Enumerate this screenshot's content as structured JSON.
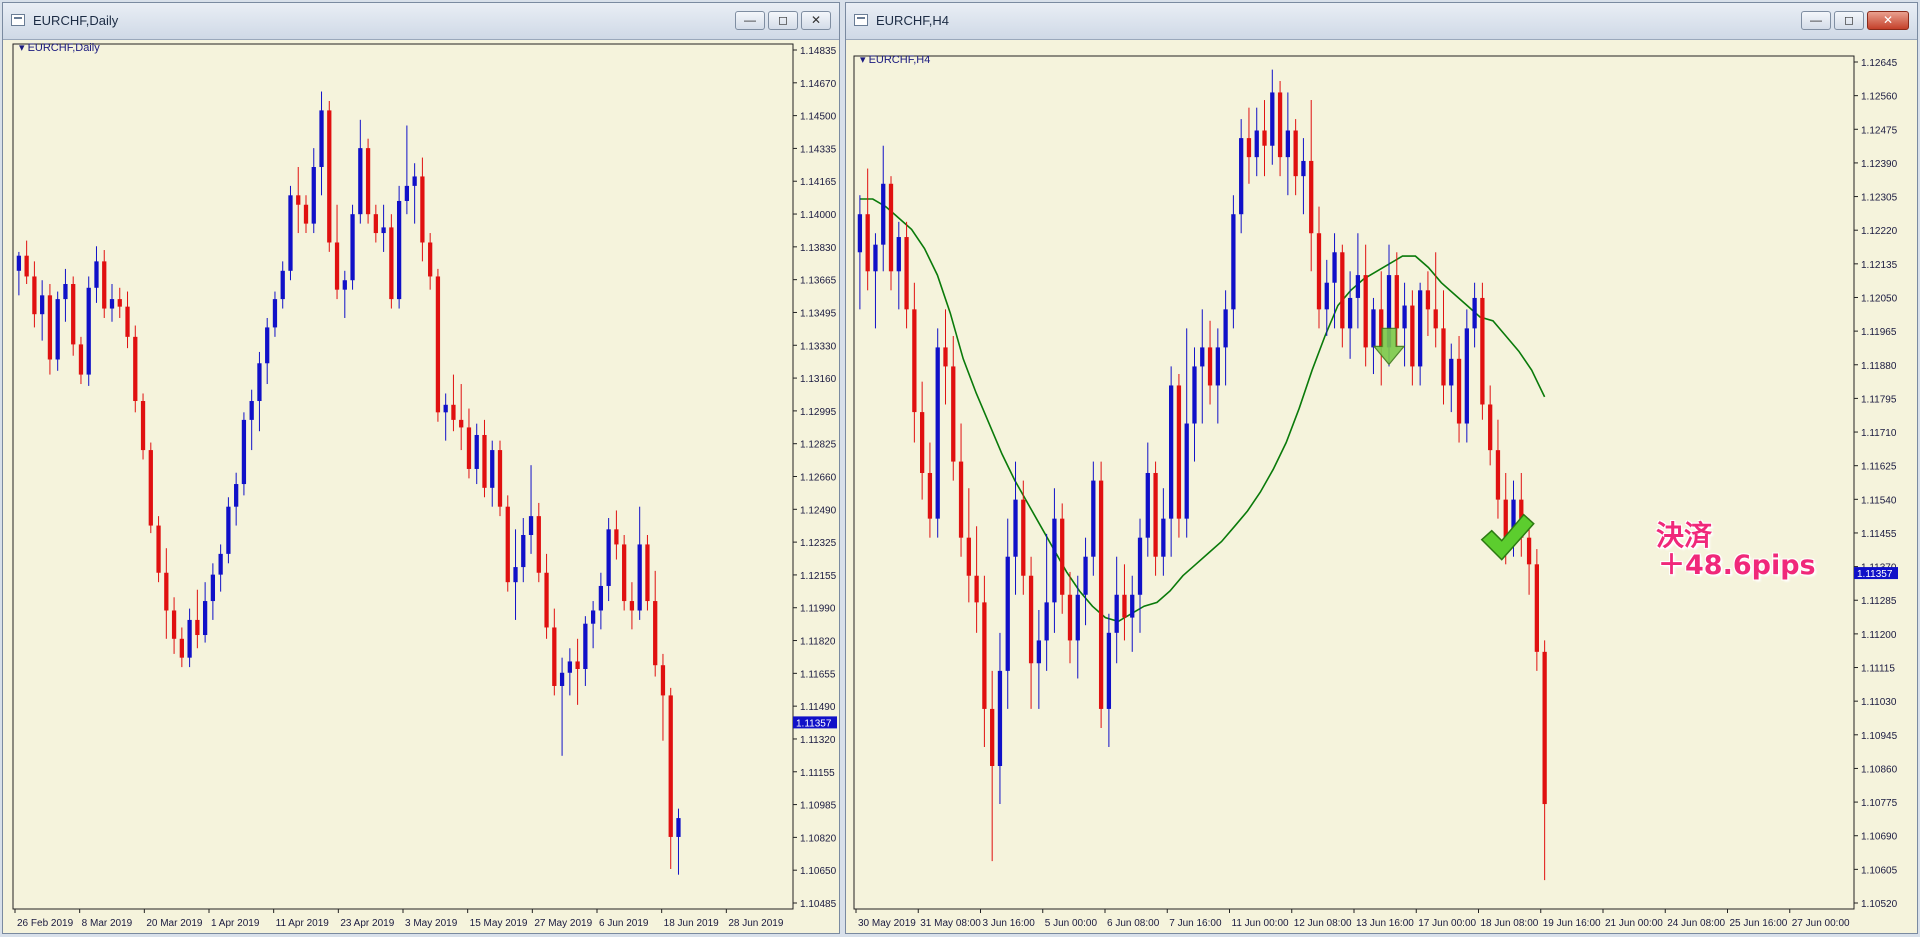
{
  "windows": {
    "left": {
      "title": "EURCHF,Daily",
      "min": "—",
      "max": "◻",
      "close": "✕"
    },
    "right": {
      "title": "EURCHF,H4",
      "min": "—",
      "max": "◻",
      "close": "✕"
    }
  },
  "annotation": {
    "line1": "決済",
    "line2": "＋48.6pips"
  },
  "colors": {
    "bull": "#1010c8",
    "bear": "#e01010",
    "ma": "#0a7a0a",
    "bg": "#f5f3dc",
    "price_tag": "#1010c8"
  },
  "chart_data": [
    {
      "type": "candlestick",
      "title": "EURCHF,Daily",
      "ylim": [
        1.104,
        1.1492
      ],
      "yticks": [
        "1.14835",
        "1.14670",
        "1.14500",
        "1.14335",
        "1.14165",
        "1.14000",
        "1.13830",
        "1.13665",
        "1.13495",
        "1.13330",
        "1.13160",
        "1.12995",
        "1.12825",
        "1.12660",
        "1.12490",
        "1.12325",
        "1.12155",
        "1.11990",
        "1.11820",
        "1.11655",
        "1.11490",
        "1.11320",
        "1.11155",
        "1.10985",
        "1.10820",
        "1.10650",
        "1.10485"
      ],
      "xticks": [
        "26 Feb 2019",
        "8 Mar 2019",
        "20 Mar 2019",
        "1 Apr 2019",
        "11 Apr 2019",
        "23 Apr 2019",
        "3 May 2019",
        "15 May 2019",
        "27 May 2019",
        "6 Jun 2019",
        "18 Jun 2019",
        "28 Jun 2019"
      ],
      "n_slots": 100,
      "current_price": "1.11357",
      "candles": [
        [
          1.1375,
          1.1385,
          1.1362,
          1.1383
        ],
        [
          1.1383,
          1.1391,
          1.1368,
          1.1372
        ],
        [
          1.1372,
          1.138,
          1.1345,
          1.1352
        ],
        [
          1.1352,
          1.137,
          1.1338,
          1.1362
        ],
        [
          1.1362,
          1.1368,
          1.132,
          1.1328
        ],
        [
          1.1328,
          1.1364,
          1.1322,
          1.136
        ],
        [
          1.136,
          1.1376,
          1.1348,
          1.1368
        ],
        [
          1.1368,
          1.1372,
          1.133,
          1.1336
        ],
        [
          1.1336,
          1.134,
          1.1315,
          1.132
        ],
        [
          1.132,
          1.1372,
          1.1314,
          1.1366
        ],
        [
          1.1366,
          1.1388,
          1.1358,
          1.138
        ],
        [
          1.138,
          1.1386,
          1.135,
          1.1355
        ],
        [
          1.1355,
          1.1368,
          1.1348,
          1.136
        ],
        [
          1.136,
          1.1366,
          1.135,
          1.1356
        ],
        [
          1.1356,
          1.1364,
          1.1334,
          1.134
        ],
        [
          1.134,
          1.1346,
          1.13,
          1.1306
        ],
        [
          1.1306,
          1.131,
          1.1275,
          1.128
        ],
        [
          1.128,
          1.1284,
          1.1236,
          1.124
        ],
        [
          1.124,
          1.1245,
          1.121,
          1.1215
        ],
        [
          1.1215,
          1.1228,
          1.118,
          1.1195
        ],
        [
          1.1195,
          1.1202,
          1.1172,
          1.118
        ],
        [
          1.118,
          1.1186,
          1.1165,
          1.117
        ],
        [
          1.117,
          1.1196,
          1.1165,
          1.119
        ],
        [
          1.119,
          1.1206,
          1.1175,
          1.1182
        ],
        [
          1.1182,
          1.121,
          1.1178,
          1.12
        ],
        [
          1.12,
          1.122,
          1.119,
          1.1214
        ],
        [
          1.1214,
          1.123,
          1.1205,
          1.1225
        ],
        [
          1.1225,
          1.1255,
          1.122,
          1.125
        ],
        [
          1.125,
          1.1268,
          1.124,
          1.1262
        ],
        [
          1.1262,
          1.13,
          1.1256,
          1.1296
        ],
        [
          1.1296,
          1.1312,
          1.128,
          1.1306
        ],
        [
          1.1306,
          1.1332,
          1.129,
          1.1326
        ],
        [
          1.1326,
          1.135,
          1.1315,
          1.1345
        ],
        [
          1.1345,
          1.1364,
          1.134,
          1.136
        ],
        [
          1.136,
          1.138,
          1.1355,
          1.1375
        ],
        [
          1.1375,
          1.142,
          1.137,
          1.1415
        ],
        [
          1.1415,
          1.143,
          1.1395,
          1.141
        ],
        [
          1.141,
          1.1415,
          1.1395,
          1.14
        ],
        [
          1.14,
          1.144,
          1.1395,
          1.143
        ],
        [
          1.143,
          1.147,
          1.1415,
          1.146
        ],
        [
          1.146,
          1.1465,
          1.1385,
          1.139
        ],
        [
          1.139,
          1.141,
          1.136,
          1.1365
        ],
        [
          1.1365,
          1.1375,
          1.135,
          1.137
        ],
        [
          1.137,
          1.141,
          1.1365,
          1.1405
        ],
        [
          1.1405,
          1.1455,
          1.14,
          1.144
        ],
        [
          1.144,
          1.1445,
          1.14,
          1.1405
        ],
        [
          1.1405,
          1.141,
          1.139,
          1.1395
        ],
        [
          1.1395,
          1.141,
          1.1385,
          1.1398
        ],
        [
          1.1398,
          1.1405,
          1.1355,
          1.136
        ],
        [
          1.136,
          1.142,
          1.1355,
          1.1412
        ],
        [
          1.1412,
          1.1452,
          1.1405,
          1.142
        ],
        [
          1.142,
          1.1432,
          1.14,
          1.1425
        ],
        [
          1.1425,
          1.1435,
          1.138,
          1.139
        ],
        [
          1.139,
          1.1395,
          1.1365,
          1.1372
        ],
        [
          1.1372,
          1.1376,
          1.1295,
          1.13
        ],
        [
          1.13,
          1.131,
          1.1285,
          1.1304
        ],
        [
          1.1304,
          1.132,
          1.129,
          1.1296
        ],
        [
          1.1296,
          1.1315,
          1.128,
          1.1292
        ],
        [
          1.1292,
          1.1302,
          1.1265,
          1.127
        ],
        [
          1.127,
          1.1294,
          1.1262,
          1.1288
        ],
        [
          1.1288,
          1.1296,
          1.1255,
          1.126
        ],
        [
          1.126,
          1.1285,
          1.125,
          1.128
        ],
        [
          1.128,
          1.1285,
          1.1245,
          1.125
        ],
        [
          1.125,
          1.1256,
          1.1205,
          1.121
        ],
        [
          1.121,
          1.1238,
          1.119,
          1.1218
        ],
        [
          1.1218,
          1.1244,
          1.121,
          1.1235
        ],
        [
          1.1235,
          1.1272,
          1.1225,
          1.1245
        ],
        [
          1.1245,
          1.1252,
          1.121,
          1.1215
        ],
        [
          1.1215,
          1.1225,
          1.118,
          1.1186
        ],
        [
          1.1186,
          1.1196,
          1.115,
          1.1155
        ],
        [
          1.1155,
          1.117,
          1.1118,
          1.1162
        ],
        [
          1.1162,
          1.1175,
          1.115,
          1.1168
        ],
        [
          1.1168,
          1.118,
          1.1145,
          1.1164
        ],
        [
          1.1164,
          1.1192,
          1.1155,
          1.1188
        ],
        [
          1.1188,
          1.12,
          1.1175,
          1.1195
        ],
        [
          1.1195,
          1.1215,
          1.1185,
          1.1208
        ],
        [
          1.1208,
          1.1244,
          1.12,
          1.1238
        ],
        [
          1.1238,
          1.1248,
          1.1222,
          1.123
        ],
        [
          1.123,
          1.1235,
          1.1195,
          1.12
        ],
        [
          1.12,
          1.121,
          1.1185,
          1.1195
        ],
        [
          1.1195,
          1.125,
          1.119,
          1.123
        ],
        [
          1.123,
          1.1235,
          1.1195,
          1.12
        ],
        [
          1.12,
          1.1216,
          1.116,
          1.1166
        ],
        [
          1.1166,
          1.1172,
          1.1126,
          1.115
        ],
        [
          1.115,
          1.1154,
          1.1058,
          1.1075
        ],
        [
          1.1075,
          1.109,
          1.1055,
          1.1085
        ]
      ]
    },
    {
      "type": "candlestick",
      "title": "EURCHF,H4",
      "ylim": [
        1.1049,
        1.127
      ],
      "yticks": [
        "1.12645",
        "1.12560",
        "1.12475",
        "1.12390",
        "1.12305",
        "1.12220",
        "1.12135",
        "1.12050",
        "1.11965",
        "1.11880",
        "1.11795",
        "1.11710",
        "1.11625",
        "1.11540",
        "1.11455",
        "1.11370",
        "1.11285",
        "1.11200",
        "1.11115",
        "1.11030",
        "1.10945",
        "1.10860",
        "1.10775",
        "1.10690",
        "1.10605",
        "1.10520"
      ],
      "xticks": [
        "30 May 2019",
        "31 May 08:00",
        "3 Jun 16:00",
        "5 Jun 00:00",
        "6 Jun 08:00",
        "7 Jun 16:00",
        "11 Jun 00:00",
        "12 Jun 08:00",
        "13 Jun 16:00",
        "17 Jun 00:00",
        "18 Jun 08:00",
        "19 Jun 16:00",
        "21 Jun 00:00",
        "24 Jun 08:00",
        "25 Jun 16:00",
        "27 Jun 00:00"
      ],
      "n_slots": 128,
      "current_price": "1.11357",
      "moving_average": [
        1.1234,
        1.1234,
        1.1232,
        1.1229,
        1.1226,
        1.1221,
        1.1214,
        1.1204,
        1.1192,
        1.1183,
        1.1175,
        1.1167,
        1.116,
        1.1154,
        1.1148,
        1.1142,
        1.1136,
        1.1131,
        1.1127,
        1.1124,
        1.1123,
        1.1125,
        1.1127,
        1.1128,
        1.1131,
        1.1135,
        1.1138,
        1.1141,
        1.1144,
        1.1148,
        1.1152,
        1.1157,
        1.1163,
        1.117,
        1.1179,
        1.1189,
        1.1198,
        1.1206,
        1.121,
        1.1213,
        1.1215,
        1.1217,
        1.1219,
        1.1219,
        1.1216,
        1.1212,
        1.1209,
        1.1206,
        1.1203,
        1.1202,
        1.1198,
        1.1194,
        1.1189,
        1.1182
      ],
      "candles": [
        [
          1.122,
          1.1235,
          1.1205,
          1.123
        ],
        [
          1.123,
          1.1242,
          1.121,
          1.1215
        ],
        [
          1.1215,
          1.1225,
          1.12,
          1.1222
        ],
        [
          1.1222,
          1.1248,
          1.1215,
          1.1238
        ],
        [
          1.1238,
          1.124,
          1.121,
          1.1215
        ],
        [
          1.1215,
          1.1228,
          1.1205,
          1.1224
        ],
        [
          1.1224,
          1.1228,
          1.12,
          1.1205
        ],
        [
          1.1205,
          1.1212,
          1.117,
          1.1178
        ],
        [
          1.1178,
          1.1186,
          1.1155,
          1.1162
        ],
        [
          1.1162,
          1.117,
          1.1145,
          1.115
        ],
        [
          1.115,
          1.12,
          1.1145,
          1.1195
        ],
        [
          1.1195,
          1.1205,
          1.118,
          1.119
        ],
        [
          1.119,
          1.1198,
          1.116,
          1.1165
        ],
        [
          1.1165,
          1.1175,
          1.114,
          1.1145
        ],
        [
          1.1145,
          1.1158,
          1.1128,
          1.1135
        ],
        [
          1.1135,
          1.1148,
          1.112,
          1.1128
        ],
        [
          1.1128,
          1.1135,
          1.109,
          1.11
        ],
        [
          1.11,
          1.111,
          1.106,
          1.1085
        ],
        [
          1.1085,
          1.112,
          1.1075,
          1.111
        ],
        [
          1.111,
          1.115,
          1.11,
          1.114
        ],
        [
          1.114,
          1.1165,
          1.113,
          1.1155
        ],
        [
          1.1155,
          1.116,
          1.113,
          1.1135
        ],
        [
          1.1135,
          1.114,
          1.11,
          1.1112
        ],
        [
          1.1112,
          1.1126,
          1.11,
          1.1118
        ],
        [
          1.1118,
          1.1146,
          1.111,
          1.1128
        ],
        [
          1.1128,
          1.1158,
          1.112,
          1.115
        ],
        [
          1.115,
          1.1154,
          1.1125,
          1.113
        ],
        [
          1.113,
          1.1136,
          1.1112,
          1.1118
        ],
        [
          1.1118,
          1.1135,
          1.1108,
          1.113
        ],
        [
          1.113,
          1.1145,
          1.1122,
          1.114
        ],
        [
          1.114,
          1.1165,
          1.1135,
          1.116
        ],
        [
          1.116,
          1.1165,
          1.1095,
          1.11
        ],
        [
          1.11,
          1.1125,
          1.109,
          1.112
        ],
        [
          1.112,
          1.114,
          1.1112,
          1.113
        ],
        [
          1.113,
          1.1138,
          1.1118,
          1.1124
        ],
        [
          1.1124,
          1.1135,
          1.1115,
          1.113
        ],
        [
          1.113,
          1.115,
          1.112,
          1.1145
        ],
        [
          1.1145,
          1.117,
          1.114,
          1.1162
        ],
        [
          1.1162,
          1.1165,
          1.1135,
          1.114
        ],
        [
          1.114,
          1.1158,
          1.1135,
          1.115
        ],
        [
          1.115,
          1.119,
          1.114,
          1.1185
        ],
        [
          1.1185,
          1.1188,
          1.1145,
          1.115
        ],
        [
          1.115,
          1.12,
          1.1145,
          1.1175
        ],
        [
          1.1175,
          1.1195,
          1.1165,
          1.119
        ],
        [
          1.119,
          1.1205,
          1.1175,
          1.1195
        ],
        [
          1.1195,
          1.1202,
          1.118,
          1.1185
        ],
        [
          1.1185,
          1.12,
          1.1175,
          1.1195
        ],
        [
          1.1195,
          1.121,
          1.1185,
          1.1205
        ],
        [
          1.1205,
          1.1235,
          1.12,
          1.123
        ],
        [
          1.123,
          1.1255,
          1.1225,
          1.125
        ],
        [
          1.125,
          1.1258,
          1.1238,
          1.1245
        ],
        [
          1.1245,
          1.1258,
          1.124,
          1.1252
        ],
        [
          1.1252,
          1.126,
          1.124,
          1.1248
        ],
        [
          1.1248,
          1.1268,
          1.1243,
          1.1262
        ],
        [
          1.1262,
          1.1265,
          1.124,
          1.1245
        ],
        [
          1.1245,
          1.1262,
          1.1235,
          1.1252
        ],
        [
          1.1252,
          1.1255,
          1.1235,
          1.124
        ],
        [
          1.124,
          1.125,
          1.123,
          1.1244
        ],
        [
          1.1244,
          1.126,
          1.1215,
          1.1225
        ],
        [
          1.1225,
          1.1232,
          1.12,
          1.1205
        ],
        [
          1.1205,
          1.1218,
          1.1198,
          1.1212
        ],
        [
          1.1212,
          1.1225,
          1.12,
          1.122
        ],
        [
          1.122,
          1.1222,
          1.1195,
          1.12
        ],
        [
          1.12,
          1.1215,
          1.1192,
          1.1208
        ],
        [
          1.1208,
          1.1225,
          1.12,
          1.1214
        ],
        [
          1.1214,
          1.1222,
          1.119,
          1.1195
        ],
        [
          1.1195,
          1.1208,
          1.1188,
          1.1205
        ],
        [
          1.1205,
          1.1215,
          1.1185,
          1.1195
        ],
        [
          1.1195,
          1.1222,
          1.119,
          1.1214
        ],
        [
          1.1214,
          1.122,
          1.1195,
          1.12
        ],
        [
          1.12,
          1.1212,
          1.119,
          1.1206
        ],
        [
          1.1206,
          1.121,
          1.1185,
          1.119
        ],
        [
          1.119,
          1.1212,
          1.1185,
          1.121
        ],
        [
          1.121,
          1.1215,
          1.1198,
          1.1205
        ],
        [
          1.1205,
          1.122,
          1.1195,
          1.12
        ],
        [
          1.12,
          1.121,
          1.118,
          1.1185
        ],
        [
          1.1185,
          1.1196,
          1.1178,
          1.1192
        ],
        [
          1.1192,
          1.1198,
          1.117,
          1.1175
        ],
        [
          1.1175,
          1.1205,
          1.117,
          1.12
        ],
        [
          1.12,
          1.1212,
          1.1195,
          1.1208
        ],
        [
          1.1208,
          1.1212,
          1.1176,
          1.118
        ],
        [
          1.118,
          1.1185,
          1.1164,
          1.1168
        ],
        [
          1.1168,
          1.1176,
          1.115,
          1.1155
        ],
        [
          1.1155,
          1.1162,
          1.1138,
          1.1145
        ],
        [
          1.1145,
          1.116,
          1.114,
          1.1155
        ],
        [
          1.1155,
          1.1162,
          1.114,
          1.1145
        ],
        [
          1.1145,
          1.115,
          1.113,
          1.1138
        ],
        [
          1.1138,
          1.1142,
          1.111,
          1.1115
        ],
        [
          1.1115,
          1.1118,
          1.1055,
          1.1075
        ]
      ]
    }
  ]
}
